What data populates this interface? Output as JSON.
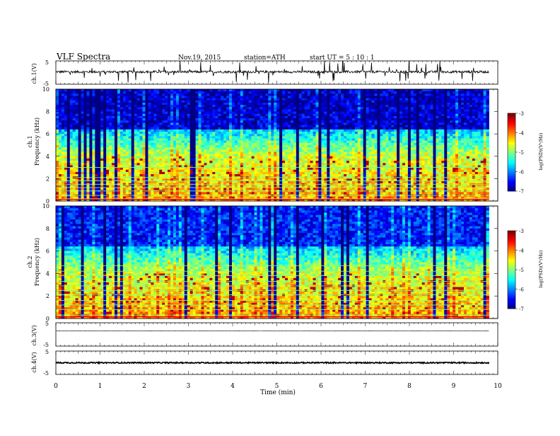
{
  "header": {
    "title": "VLF  Spectra",
    "date": "Nov.19, 2015",
    "station": "station=ATH",
    "start": "start  UT  =   5  : 10 : 1"
  },
  "chart_data": [
    {
      "type": "line",
      "panel": "ch1-waveform",
      "ylabel": "ch.1(V)",
      "ylim": [
        -5,
        5
      ],
      "yticks": [
        "5",
        "-5"
      ],
      "x_range_min": [
        0,
        9.8
      ],
      "y_baseline": 0.3,
      "color": "#000000"
    },
    {
      "type": "heatmap",
      "panel": "ch1-spectrogram",
      "ylabel": [
        "ch.1",
        "Frequency  (kHz)"
      ],
      "ylim": [
        0,
        10
      ],
      "yticks": [
        "0",
        "2",
        "4",
        "6",
        "8",
        "10"
      ],
      "x_range_min": [
        0,
        9.8
      ],
      "colorbar": {
        "label": "log(PSD)(V²/Hz)",
        "ticks": [
          "-3",
          "-4",
          "-5",
          "-6",
          "-7"
        ],
        "range": [
          -7,
          -3
        ]
      }
    },
    {
      "type": "heatmap",
      "panel": "ch2-spectrogram",
      "ylabel": [
        "ch.2",
        "Frequency  (kHz)"
      ],
      "ylim": [
        0,
        10
      ],
      "yticks": [
        "0",
        "2",
        "4",
        "6",
        "8",
        "10"
      ],
      "x_range_min": [
        0,
        9.8
      ],
      "colorbar": {
        "label": "log(PSD)(V²/Hz)",
        "ticks": [
          "-3",
          "-4",
          "-5",
          "-6",
          "-7"
        ],
        "range": [
          -7,
          -3
        ]
      }
    },
    {
      "type": "line",
      "panel": "ch3-waveform",
      "ylabel": "ch.3(V)",
      "ylim": [
        -5,
        5
      ],
      "yticks": [
        "5",
        "-5"
      ],
      "x_range_min": [
        0,
        9.8
      ],
      "y_baseline": 1.5,
      "color": "#000000"
    },
    {
      "type": "line",
      "panel": "ch4-waveform",
      "ylabel": "ch.4(V)",
      "ylim": [
        -5,
        5
      ],
      "yticks": [
        "5",
        "-5"
      ],
      "x_range_min": [
        0,
        9.8
      ],
      "y_baseline": 0,
      "color": "#000000"
    }
  ],
  "xaxis": {
    "label": "Time  (min)",
    "range": [
      0,
      10
    ],
    "ticks": [
      "0",
      "1",
      "2",
      "3",
      "4",
      "5",
      "6",
      "7",
      "8",
      "9",
      "10"
    ]
  },
  "colors": {
    "low": "#000060",
    "mid": "#00ff40",
    "high": "#ff0000"
  }
}
